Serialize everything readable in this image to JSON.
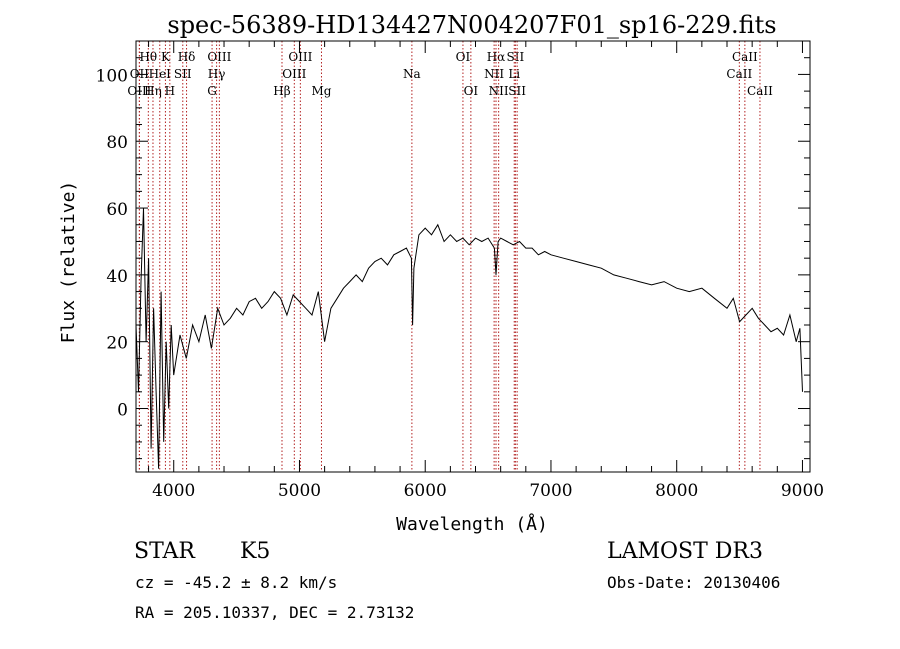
{
  "chart_data": {
    "type": "line",
    "title": "spec-56389-HD134427N004207F01_sp16-229.fits",
    "xlabel": "Wavelength (Å)",
    "ylabel": "Flux (relative)",
    "xlim": [
      3700,
      9060
    ],
    "ylim": [
      -19,
      110
    ],
    "x_ticks": [
      4000,
      5000,
      6000,
      7000,
      8000,
      9000
    ],
    "y_ticks": [
      0,
      20,
      40,
      60,
      80,
      100
    ],
    "line_color": "#000000",
    "marker_color": "#b22222",
    "series": [
      {
        "name": "spectrum",
        "x": [
          3700,
          3720,
          3740,
          3760,
          3780,
          3800,
          3820,
          3840,
          3860,
          3880,
          3900,
          3920,
          3940,
          3960,
          3980,
          4000,
          4050,
          4100,
          4150,
          4200,
          4250,
          4300,
          4350,
          4400,
          4450,
          4500,
          4550,
          4600,
          4650,
          4700,
          4750,
          4800,
          4850,
          4900,
          4950,
          5000,
          5050,
          5100,
          5150,
          5200,
          5250,
          5300,
          5350,
          5400,
          5450,
          5500,
          5550,
          5600,
          5650,
          5700,
          5750,
          5800,
          5850,
          5890,
          5900,
          5910,
          5950,
          6000,
          6050,
          6100,
          6150,
          6200,
          6250,
          6300,
          6350,
          6400,
          6450,
          6500,
          6550,
          6563,
          6580,
          6600,
          6650,
          6700,
          6750,
          6800,
          6850,
          6900,
          6950,
          7000,
          7100,
          7200,
          7300,
          7400,
          7500,
          7600,
          7700,
          7800,
          7900,
          8000,
          8100,
          8200,
          8300,
          8400,
          8450,
          8500,
          8550,
          8600,
          8650,
          8700,
          8750,
          8800,
          8850,
          8900,
          8950,
          8980,
          9000
        ],
        "values": [
          25,
          5,
          38,
          60,
          20,
          45,
          -12,
          30,
          5,
          -18,
          35,
          -10,
          20,
          0,
          25,
          10,
          22,
          15,
          25,
          20,
          28,
          18,
          30,
          25,
          27,
          30,
          28,
          32,
          33,
          30,
          32,
          35,
          33,
          28,
          34,
          32,
          30,
          28,
          35,
          20,
          30,
          33,
          36,
          38,
          40,
          38,
          42,
          44,
          45,
          43,
          46,
          47,
          48,
          45,
          25,
          42,
          52,
          54,
          52,
          55,
          50,
          52,
          50,
          51,
          49,
          51,
          50,
          51,
          48,
          40,
          50,
          51,
          50,
          49,
          50,
          48,
          48,
          46,
          47,
          46,
          45,
          44,
          43,
          42,
          40,
          39,
          38,
          37,
          38,
          36,
          35,
          36,
          33,
          30,
          33,
          26,
          28,
          30,
          27,
          25,
          23,
          24,
          22,
          28,
          20,
          24,
          5
        ]
      }
    ],
    "line_markers": [
      {
        "label": "Hθ",
        "x": 3798,
        "row": 0
      },
      {
        "label": "OII",
        "x": 3727,
        "row": 1
      },
      {
        "label": "OIII",
        "x": 3727,
        "row": 2
      },
      {
        "label": "Hη",
        "x": 3835,
        "row": 2
      },
      {
        "label": "K",
        "x": 3934,
        "row": 0
      },
      {
        "label": "HeI",
        "x": 3889,
        "row": 1
      },
      {
        "label": "H",
        "x": 3969,
        "row": 2
      },
      {
        "label": "Hδ",
        "x": 4102,
        "row": 0
      },
      {
        "label": "SII",
        "x": 4072,
        "row": 1
      },
      {
        "label": "OIII",
        "x": 4363,
        "row": 0
      },
      {
        "label": "Hγ",
        "x": 4341,
        "row": 1
      },
      {
        "label": "G",
        "x": 4305,
        "row": 2
      },
      {
        "label": "OIII",
        "x": 5007,
        "row": 0
      },
      {
        "label": "OIII",
        "x": 4959,
        "row": 1
      },
      {
        "label": "Hβ",
        "x": 4861,
        "row": 2
      },
      {
        "label": "Mg",
        "x": 5175,
        "row": 2
      },
      {
        "label": "Na",
        "x": 5894,
        "row": 1
      },
      {
        "label": "OI",
        "x": 6300,
        "row": 0
      },
      {
        "label": "OI",
        "x": 6363,
        "row": 2
      },
      {
        "label": "Hα",
        "x": 6563,
        "row": 0
      },
      {
        "label": "SII",
        "x": 6717,
        "row": 0
      },
      {
        "label": "NII",
        "x": 6548,
        "row": 1
      },
      {
        "label": "Li",
        "x": 6708,
        "row": 1
      },
      {
        "label": "NII",
        "x": 6584,
        "row": 2
      },
      {
        "label": "SII",
        "x": 6731,
        "row": 2
      },
      {
        "label": "CaII",
        "x": 8542,
        "row": 0
      },
      {
        "label": "CaII",
        "x": 8498,
        "row": 1
      },
      {
        "label": "CaII",
        "x": 8662,
        "row": 2
      }
    ]
  },
  "footer": {
    "object_class": "STAR",
    "subclass": "K5",
    "survey": "LAMOST DR3",
    "cz": "cz = -45.2 ± 8.2 km/s",
    "obs_date": "Obs-Date: 20130406",
    "coords": "RA = 205.10337, DEC =   2.73132"
  }
}
